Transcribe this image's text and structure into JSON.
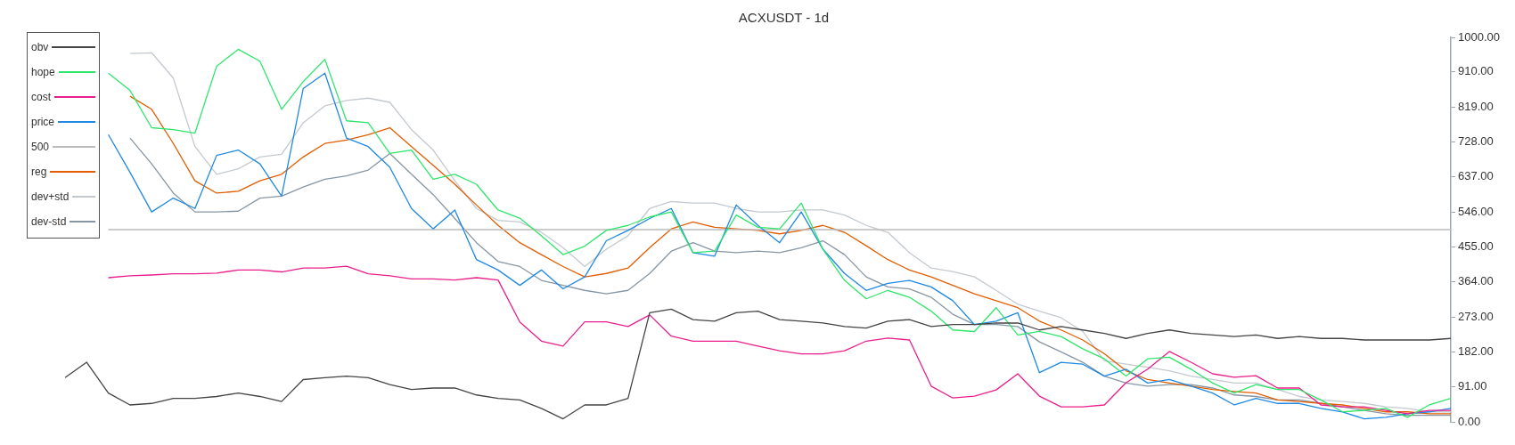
{
  "chart_data": {
    "type": "line",
    "title": "ACXUSDT - 1d",
    "categories": [
      null,
      null,
      null,
      null,
      null,
      null,
      null,
      null,
      null,
      null,
      null,
      null,
      null,
      null,
      null,
      null,
      null,
      null,
      null,
      null,
      null,
      null,
      null,
      null,
      null,
      null,
      null,
      null,
      null,
      null,
      null,
      null,
      null,
      null,
      null,
      null,
      null,
      null,
      null,
      null,
      null,
      null,
      null,
      null,
      null,
      null,
      null,
      null,
      null,
      null,
      null,
      null,
      null,
      null,
      null,
      null,
      null,
      null,
      null,
      null,
      null,
      null,
      null,
      null,
      null
    ],
    "ylim": [
      0,
      1000
    ],
    "yticks": [
      {
        "value": 0,
        "label": "0.00"
      },
      {
        "value": 91,
        "label": "91.00"
      },
      {
        "value": 182,
        "label": "182.00"
      },
      {
        "value": 273,
        "label": "273.00"
      },
      {
        "value": 364,
        "label": "364.00"
      },
      {
        "value": 455,
        "label": "455.00"
      },
      {
        "value": 546,
        "label": "546.00"
      },
      {
        "value": 637,
        "label": "637.00"
      },
      {
        "value": 728,
        "label": "728.00"
      },
      {
        "value": 819,
        "label": "819.00"
      },
      {
        "value": 910,
        "label": "910.00"
      },
      {
        "value": 1000,
        "label": "1000.00"
      }
    ],
    "tick_labels": "y",
    "grid": false,
    "legend": "top left",
    "marker": "none",
    "line_style": "solid",
    "series": [
      {
        "name": "obv",
        "color": "#444444",
        "values": [
          115,
          155,
          75,
          44,
          48,
          61,
          61,
          66,
          75,
          66,
          53,
          110,
          115,
          119,
          115,
          97,
          84,
          88,
          88,
          70,
          61,
          57,
          35,
          8,
          44,
          44,
          61,
          284,
          293,
          266,
          262,
          284,
          288,
          266,
          262,
          257,
          248,
          244,
          262,
          266,
          248,
          253,
          253,
          257,
          257,
          239,
          248,
          239,
          230,
          217,
          230,
          239,
          230,
          226,
          222,
          226,
          217,
          222,
          217,
          217,
          213,
          213,
          213,
          213,
          217
        ]
      },
      {
        "name": "hope",
        "color": "#2ee66b",
        "values": [
          null,
          null,
          907,
          862,
          765,
          760,
          751,
          925,
          969,
          938,
          813,
          885,
          943,
          783,
          778,
          698,
          707,
          631,
          644,
          618,
          551,
          530,
          484,
          435,
          457,
          498,
          511,
          533,
          546,
          440,
          444,
          538,
          506,
          502,
          569,
          449,
          368,
          320,
          342,
          324,
          288,
          239,
          235,
          297,
          226,
          235,
          222,
          190,
          164,
          119,
          164,
          168,
          137,
          101,
          75,
          97,
          84,
          84,
          57,
          26,
          30,
          35,
          12,
          44,
          61
        ]
      },
      {
        "name": "cost",
        "color": "#e91e8c",
        "values": [
          null,
          null,
          375,
          380,
          382,
          385,
          385,
          387,
          395,
          395,
          390,
          400,
          400,
          405,
          385,
          380,
          372,
          372,
          369,
          375,
          369,
          260,
          210,
          197,
          260,
          260,
          248,
          278,
          223,
          210,
          210,
          210,
          197,
          185,
          177,
          177,
          185,
          210,
          218,
          213,
          93,
          62,
          67,
          83,
          125,
          67,
          39,
          39,
          44,
          102,
          137,
          183,
          155,
          125,
          116,
          120,
          88,
          88,
          44,
          39,
          39,
          30,
          21,
          30,
          30
        ]
      },
      {
        "name": "price",
        "color": "#1e88e5",
        "values": [
          null,
          null,
          747,
          649,
          546,
          582,
          555,
          693,
          707,
          671,
          587,
          867,
          907,
          738,
          716,
          662,
          555,
          502,
          551,
          422,
          395,
          355,
          395,
          346,
          377,
          471,
          498,
          529,
          555,
          440,
          431,
          564,
          511,
          466,
          546,
          449,
          386,
          342,
          360,
          368,
          351,
          315,
          253,
          262,
          284,
          128,
          155,
          150,
          119,
          137,
          101,
          110,
          93,
          75,
          44,
          61,
          48,
          48,
          35,
          26,
          8,
          12,
          21,
          26,
          35
        ]
      },
      {
        "name": "500",
        "color": "#bbbbbb",
        "values": [
          null,
          null,
          500,
          500,
          500,
          500,
          500,
          500,
          500,
          500,
          500,
          500,
          500,
          500,
          500,
          500,
          500,
          500,
          500,
          500,
          500,
          500,
          500,
          500,
          500,
          500,
          500,
          500,
          500,
          500,
          500,
          500,
          500,
          500,
          500,
          500,
          500,
          500,
          500,
          500,
          500,
          500,
          500,
          500,
          500,
          500,
          500,
          500,
          500,
          500,
          500,
          500,
          500,
          500,
          500,
          500,
          500,
          500,
          500,
          500,
          500,
          500,
          500,
          500,
          500
        ]
      },
      {
        "name": "reg",
        "color": "#e25d00",
        "values": [
          null,
          null,
          null,
          847,
          813,
          724,
          627,
          595,
          600,
          627,
          644,
          689,
          724,
          733,
          747,
          765,
          716,
          667,
          618,
          564,
          511,
          466,
          435,
          404,
          377,
          386,
          400,
          453,
          502,
          520,
          506,
          502,
          498,
          489,
          498,
          511,
          493,
          458,
          422,
          395,
          377,
          355,
          333,
          315,
          297,
          262,
          239,
          213,
          177,
          133,
          110,
          101,
          93,
          84,
          79,
          75,
          57,
          53,
          48,
          44,
          35,
          26,
          26,
          21,
          21
        ]
      },
      {
        "name": "dev+std",
        "color": "#c3c9cf",
        "values": [
          null,
          null,
          null,
          958,
          960,
          894,
          716,
          644,
          658,
          689,
          696,
          778,
          822,
          836,
          842,
          831,
          760,
          707,
          627,
          555,
          524,
          520,
          493,
          453,
          404,
          449,
          484,
          555,
          573,
          569,
          569,
          555,
          546,
          546,
          551,
          551,
          538,
          511,
          493,
          440,
          400,
          391,
          377,
          342,
          306,
          288,
          271,
          235,
          159,
          150,
          142,
          133,
          119,
          110,
          101,
          101,
          84,
          66,
          57,
          53,
          48,
          39,
          35,
          26,
          26
        ]
      },
      {
        "name": "dev-std",
        "color": "#8796a3",
        "values": [
          null,
          null,
          null,
          738,
          671,
          595,
          546,
          546,
          548,
          582,
          587,
          611,
          631,
          640,
          655,
          698,
          644,
          591,
          529,
          466,
          417,
          404,
          368,
          355,
          342,
          333,
          342,
          386,
          444,
          466,
          444,
          440,
          444,
          440,
          453,
          471,
          435,
          377,
          351,
          346,
          324,
          280,
          253,
          253,
          248,
          208,
          182,
          155,
          119,
          101,
          93,
          97,
          97,
          88,
          70,
          66,
          57,
          57,
          48,
          39,
          30,
          21,
          17,
          17,
          17
        ]
      }
    ]
  }
}
